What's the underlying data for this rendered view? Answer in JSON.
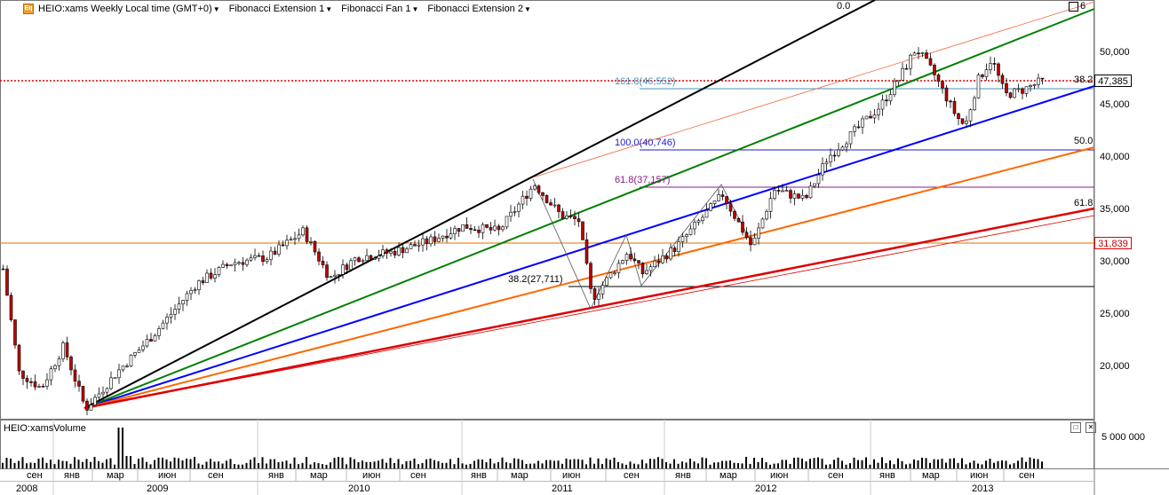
{
  "legend": {
    "symbol": "HEIO:xams Weekly Local time (GMT+0)",
    "studies": [
      "Fibonacci Extension 1",
      "Fibonacci Fan 1",
      "Fibonacci Extension 2"
    ]
  },
  "price_axis": {
    "ticks": [
      "50,000",
      "45,000",
      "40,000",
      "35,000",
      "30,000",
      "25,000",
      "20,000"
    ],
    "current_price": "47,385",
    "horizontal_line_price": "31,839"
  },
  "fan_levels": {
    "top": "0.0",
    "level_a": "38.2",
    "level_b": "50.0",
    "level_c": "61.8",
    "cut_label": "6"
  },
  "extension_levels": [
    {
      "label": "161.8(46,552)",
      "color": "#4a90b8"
    },
    {
      "label": "100.0(40,746)",
      "color": "#1c1cc8"
    },
    {
      "label": "61.8(37,157)",
      "color": "#8a1a8a"
    },
    {
      "label": "38.2(27,711)",
      "color": "#000000"
    }
  ],
  "volume": {
    "title": "HEIO:xamsVolume",
    "axis_label": "5 000 000",
    "close_glyph": "✕",
    "expand_glyph": "□"
  },
  "time_axis": {
    "months": [
      "сен",
      "янв",
      "мар",
      "июн",
      "сен",
      "янв",
      "мар",
      "июн",
      "сен",
      "янв",
      "мар",
      "июн",
      "сен",
      "янв",
      "мар",
      "июн",
      "сен",
      "янв",
      "мар",
      "июн",
      "сен"
    ],
    "years": [
      "2008",
      "2009",
      "2010",
      "2011",
      "2012",
      "2013"
    ]
  },
  "colors": {
    "up": "#ffffff",
    "down": "#c00000",
    "fan_0": "#000000",
    "fan_382": "#008000",
    "fan_50": "#0000ff",
    "fan_618": "#ff6600",
    "fan_100": "#dd0000",
    "price_line": "#dd0000",
    "orange_hline": "#e07000"
  }
}
